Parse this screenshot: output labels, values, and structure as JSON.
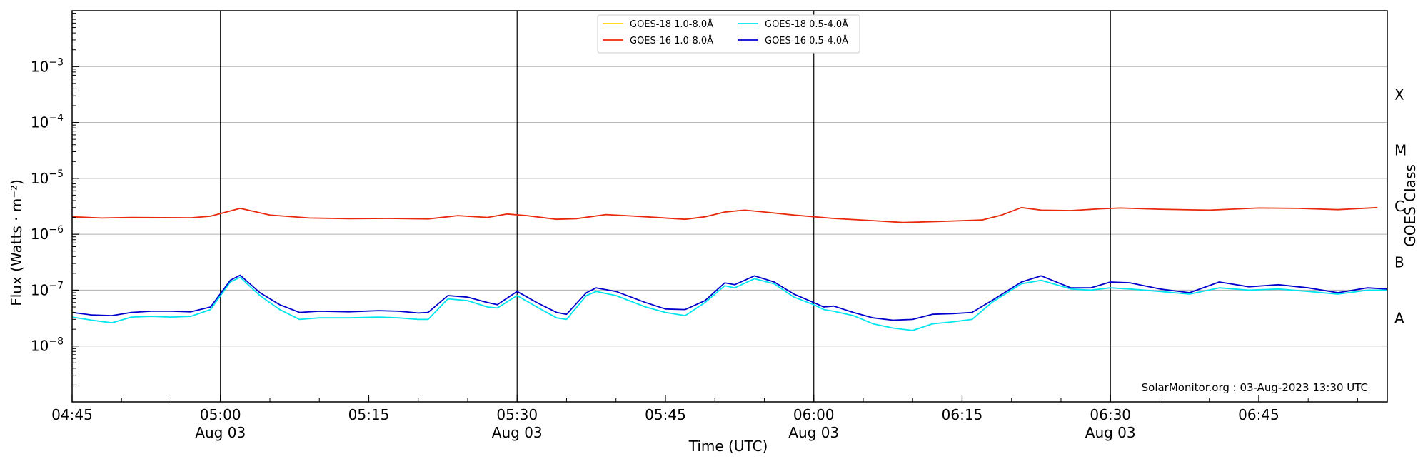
{
  "chart_data": {
    "type": "line",
    "xlabel": "Time (UTC)",
    "ylabel": "Flux (Watts · m⁻²)",
    "ylabel_right": "GOES Class",
    "y_scale": "log",
    "ylim": [
      1e-09,
      0.01
    ],
    "xlim": [
      "04:45",
      "06:58"
    ],
    "grid": "horizontal at decades",
    "legend_position": "top-center",
    "annotation": "SolarMonitor.org : 03-Aug-2023 13:30 UTC",
    "x_ticks": [
      {
        "time": "04:45",
        "label": "04:45",
        "sublabel": ""
      },
      {
        "time": "05:00",
        "label": "05:00",
        "sublabel": "Aug 03"
      },
      {
        "time": "05:15",
        "label": "05:15",
        "sublabel": ""
      },
      {
        "time": "05:30",
        "label": "05:30",
        "sublabel": "Aug 03"
      },
      {
        "time": "05:45",
        "label": "05:45",
        "sublabel": ""
      },
      {
        "time": "06:00",
        "label": "06:00",
        "sublabel": "Aug 03"
      },
      {
        "time": "06:15",
        "label": "06:15",
        "sublabel": ""
      },
      {
        "time": "06:30",
        "label": "06:30",
        "sublabel": "Aug 03"
      },
      {
        "time": "06:45",
        "label": "06:45",
        "sublabel": ""
      }
    ],
    "day_lines": [
      "05:00",
      "05:30",
      "06:00",
      "06:30"
    ],
    "y_ticks": [
      {
        "value": 1e-08,
        "base": "10",
        "exp": "−8"
      },
      {
        "value": 1e-07,
        "base": "10",
        "exp": "−7"
      },
      {
        "value": 1e-06,
        "base": "10",
        "exp": "−6"
      },
      {
        "value": 1e-05,
        "base": "10",
        "exp": "−5"
      },
      {
        "value": 0.0001,
        "base": "10",
        "exp": "−4"
      },
      {
        "value": 0.001,
        "base": "10",
        "exp": "−3"
      }
    ],
    "goes_classes": [
      {
        "label": "A",
        "value": 3.16e-08
      },
      {
        "label": "B",
        "value": 3.16e-07
      },
      {
        "label": "C",
        "value": 3.16e-06
      },
      {
        "label": "M",
        "value": 3.16e-05
      },
      {
        "label": "X",
        "value": 0.000316
      }
    ],
    "series": [
      {
        "name": "GOES-18 1.0-8.0Å",
        "color": "#FFD700",
        "x": [],
        "values": []
      },
      {
        "name": "GOES-16 1.0-8.0Å",
        "color": "#E8290B",
        "x": [
          "04:45",
          "04:48",
          "04:51",
          "04:54",
          "04:57",
          "04:59",
          "05:02",
          "05:05",
          "05:09",
          "05:13",
          "05:17",
          "05:21",
          "05:24",
          "05:27",
          "05:29",
          "05:31",
          "05:34",
          "05:36",
          "05:39",
          "05:43",
          "05:47",
          "05:49",
          "05:51",
          "05:53",
          "05:55",
          "05:58",
          "06:02",
          "06:06",
          "06:09",
          "06:13",
          "06:17",
          "06:19",
          "06:21",
          "06:23",
          "06:26",
          "06:29",
          "06:31",
          "06:35",
          "06:40",
          "06:45",
          "06:49",
          "06:53",
          "06:57"
        ],
        "values": [
          2.05e-06,
          1.95e-06,
          2e-06,
          1.98e-06,
          1.97e-06,
          2.1e-06,
          2.9e-06,
          2.2e-06,
          1.95e-06,
          1.9e-06,
          1.92e-06,
          1.88e-06,
          2.15e-06,
          2e-06,
          2.3e-06,
          2.15e-06,
          1.85e-06,
          1.9e-06,
          2.25e-06,
          2.05e-06,
          1.85e-06,
          2.05e-06,
          2.5e-06,
          2.7e-06,
          2.5e-06,
          2.2e-06,
          1.92e-06,
          1.75e-06,
          1.62e-06,
          1.7e-06,
          1.8e-06,
          2.2e-06,
          3e-06,
          2.7e-06,
          2.65e-06,
          2.85e-06,
          2.95e-06,
          2.8e-06,
          2.7e-06,
          2.95e-06,
          2.9e-06,
          2.75e-06,
          3e-06
        ]
      },
      {
        "name": "GOES-18 0.5-4.0Å",
        "color": "#00E5EE",
        "x": [
          "04:45",
          "04:47",
          "04:49",
          "04:51",
          "04:53",
          "04:55",
          "04:57",
          "04:59",
          "05:01",
          "05:02",
          "05:04",
          "05:06",
          "05:08",
          "05:10",
          "05:13",
          "05:16",
          "05:18",
          "05:20",
          "05:21",
          "05:23",
          "05:25",
          "05:27",
          "05:28",
          "05:30",
          "05:32",
          "05:34",
          "05:35",
          "05:37",
          "05:38",
          "05:40",
          "05:43",
          "05:45",
          "05:47",
          "05:49",
          "05:51",
          "05:52",
          "05:54",
          "05:56",
          "05:58",
          "06:00",
          "06:01",
          "06:02",
          "06:04",
          "06:06",
          "06:08",
          "06:10",
          "06:12",
          "06:14",
          "06:16",
          "06:18",
          "06:21",
          "06:23",
          "06:26",
          "06:28",
          "06:30",
          "06:32",
          "06:35",
          "06:38",
          "06:41",
          "06:44",
          "06:47",
          "06:50",
          "06:53",
          "06:56",
          "06:58"
        ],
        "values": [
          3.3e-08,
          2.9e-08,
          2.6e-08,
          3.3e-08,
          3.4e-08,
          3.3e-08,
          3.4e-08,
          4.5e-08,
          1.4e-07,
          1.7e-07,
          8e-08,
          4.5e-08,
          3e-08,
          3.2e-08,
          3.2e-08,
          3.3e-08,
          3.2e-08,
          3e-08,
          3e-08,
          7e-08,
          6.5e-08,
          5e-08,
          4.8e-08,
          8e-08,
          5e-08,
          3.2e-08,
          3e-08,
          8e-08,
          9.5e-08,
          8e-08,
          5e-08,
          4e-08,
          3.5e-08,
          6e-08,
          1.2e-07,
          1.1e-07,
          1.6e-07,
          1.3e-07,
          7.5e-08,
          5.5e-08,
          4.5e-08,
          4.2e-08,
          3.5e-08,
          2.5e-08,
          2.1e-08,
          1.9e-08,
          2.5e-08,
          2.7e-08,
          3e-08,
          6e-08,
          1.3e-07,
          1.5e-07,
          1.05e-07,
          1e-07,
          1.1e-07,
          1.05e-07,
          9.5e-08,
          8.5e-08,
          1.1e-07,
          1e-07,
          1.05e-07,
          9.5e-08,
          8.5e-08,
          1e-07,
          1e-07
        ]
      },
      {
        "name": "GOES-16 0.5-4.0Å",
        "color": "#0000CD",
        "x": [
          "04:45",
          "04:47",
          "04:49",
          "04:51",
          "04:53",
          "04:55",
          "04:57",
          "04:59",
          "05:01",
          "05:02",
          "05:04",
          "05:06",
          "05:08",
          "05:10",
          "05:13",
          "05:16",
          "05:18",
          "05:20",
          "05:21",
          "05:23",
          "05:25",
          "05:27",
          "05:28",
          "05:30",
          "05:32",
          "05:34",
          "05:35",
          "05:37",
          "05:38",
          "05:40",
          "05:43",
          "05:45",
          "05:47",
          "05:49",
          "05:51",
          "05:52",
          "05:54",
          "05:56",
          "05:58",
          "06:00",
          "06:01",
          "06:02",
          "06:04",
          "06:06",
          "06:08",
          "06:10",
          "06:12",
          "06:14",
          "06:16",
          "06:18",
          "06:21",
          "06:23",
          "06:26",
          "06:28",
          "06:30",
          "06:32",
          "06:35",
          "06:38",
          "06:41",
          "06:44",
          "06:47",
          "06:50",
          "06:53",
          "06:56",
          "06:58"
        ],
        "values": [
          4e-08,
          3.6e-08,
          3.5e-08,
          4e-08,
          4.2e-08,
          4.2e-08,
          4.1e-08,
          5e-08,
          1.5e-07,
          1.85e-07,
          9e-08,
          5.5e-08,
          4e-08,
          4.2e-08,
          4.1e-08,
          4.3e-08,
          4.2e-08,
          3.9e-08,
          4e-08,
          8e-08,
          7.5e-08,
          6e-08,
          5.5e-08,
          9.5e-08,
          6e-08,
          4e-08,
          3.7e-08,
          9e-08,
          1.1e-07,
          9.5e-08,
          6e-08,
          4.6e-08,
          4.5e-08,
          6.5e-08,
          1.35e-07,
          1.25e-07,
          1.8e-07,
          1.4e-07,
          8.5e-08,
          6e-08,
          5e-08,
          5.2e-08,
          4e-08,
          3.2e-08,
          2.9e-08,
          3e-08,
          3.7e-08,
          3.8e-08,
          4e-08,
          6.5e-08,
          1.4e-07,
          1.8e-07,
          1.1e-07,
          1.1e-07,
          1.4e-07,
          1.35e-07,
          1.05e-07,
          9e-08,
          1.4e-07,
          1.15e-07,
          1.25e-07,
          1.1e-07,
          9e-08,
          1.1e-07,
          1.05e-07
        ]
      }
    ]
  }
}
